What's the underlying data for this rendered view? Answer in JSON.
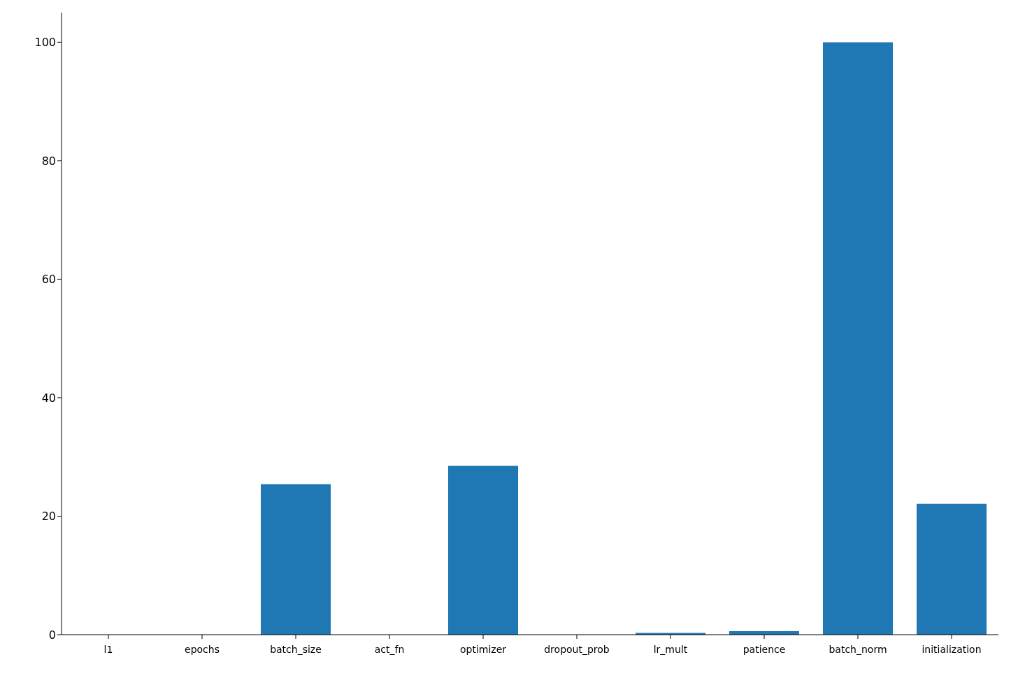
{
  "chart_data": {
    "type": "bar",
    "categories": [
      "l1",
      "epochs",
      "batch_size",
      "act_fn",
      "optimizer",
      "dropout_prob",
      "lr_mult",
      "patience",
      "batch_norm",
      "initialization"
    ],
    "values": [
      0,
      0,
      25.4,
      0,
      28.5,
      0,
      0.3,
      0.6,
      100,
      22.1
    ],
    "color": "#1f77b4",
    "ylim": [
      0,
      105
    ],
    "yticks": [
      0,
      20,
      40,
      60,
      80,
      100
    ],
    "grid": false,
    "legend": false
  }
}
